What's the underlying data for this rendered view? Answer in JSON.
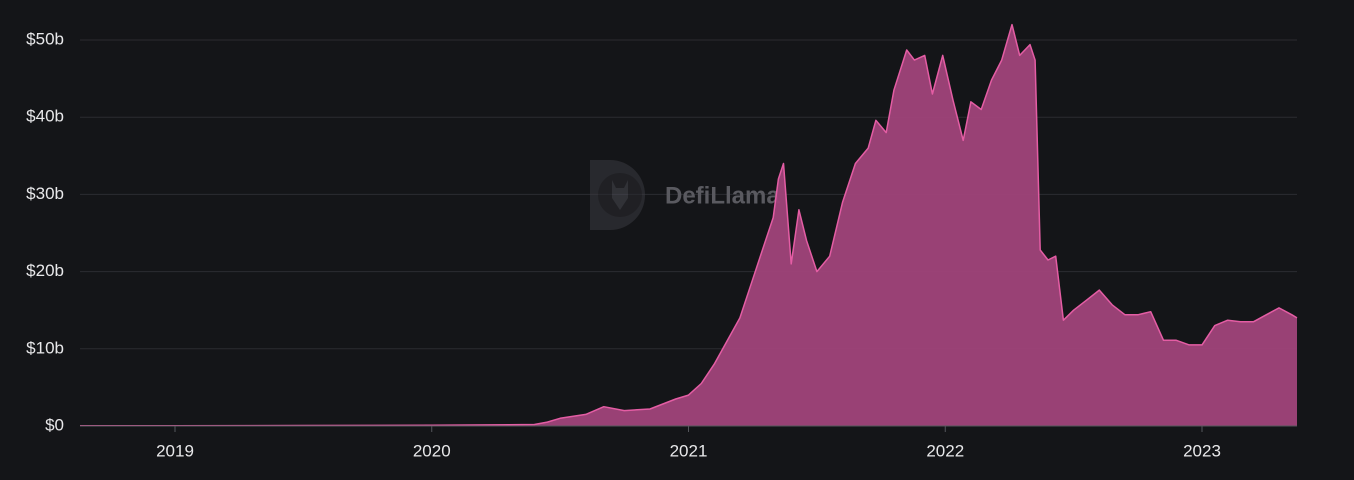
{
  "chart_data": {
    "type": "area",
    "watermark": "DefiLlama",
    "color": "#a0437a",
    "line_color": "#e45da4",
    "grid": true,
    "xlim": [
      2018.63,
      2023.37
    ],
    "xticks": [
      2019,
      2020,
      2021,
      2022,
      2023
    ],
    "ylim": [
      0,
      50
    ],
    "yticks": [
      {
        "value": 0,
        "label": "$0"
      },
      {
        "value": 10,
        "label": "$10b"
      },
      {
        "value": 20,
        "label": "$20b"
      },
      {
        "value": 30,
        "label": "$30b"
      },
      {
        "value": 40,
        "label": "$40b"
      },
      {
        "value": 50,
        "label": "$50b"
      }
    ],
    "x": [
      2018.63,
      2019.0,
      2019.5,
      2020.0,
      2020.3,
      2020.4,
      2020.45,
      2020.5,
      2020.6,
      2020.67,
      2020.75,
      2020.85,
      2020.95,
      2021.0,
      2021.05,
      2021.1,
      2021.15,
      2021.2,
      2021.25,
      2021.3,
      2021.33,
      2021.35,
      2021.37,
      2021.4,
      2021.43,
      2021.46,
      2021.5,
      2021.55,
      2021.6,
      2021.65,
      2021.7,
      2021.73,
      2021.77,
      2021.8,
      2021.85,
      2021.88,
      2021.92,
      2021.95,
      2021.99,
      2022.03,
      2022.07,
      2022.1,
      2022.14,
      2022.18,
      2022.22,
      2022.26,
      2022.29,
      2022.33,
      2022.35,
      2022.37,
      2022.4,
      2022.43,
      2022.46,
      2022.5,
      2022.55,
      2022.6,
      2022.65,
      2022.7,
      2022.75,
      2022.8,
      2022.85,
      2022.9,
      2022.95,
      2023.0,
      2023.05,
      2023.1,
      2023.15,
      2023.2,
      2023.25,
      2023.3,
      2023.35,
      2023.37
    ],
    "values": [
      0.02,
      0.03,
      0.06,
      0.1,
      0.15,
      0.2,
      0.5,
      1.0,
      1.5,
      2.5,
      2.0,
      2.2,
      3.5,
      4.0,
      5.5,
      8,
      11,
      14,
      19,
      24,
      27,
      32,
      34,
      21,
      28,
      24,
      20,
      22,
      29,
      34,
      36,
      39.6,
      38,
      43.5,
      48.7,
      47.4,
      48,
      43,
      48,
      42.2,
      37,
      42,
      41,
      44.8,
      47.4,
      52,
      48,
      49.4,
      47.4,
      22.8,
      21.5,
      22,
      13.7,
      15,
      16.3,
      17.6,
      15.7,
      14.4,
      14.4,
      14.8,
      11.1,
      11.1,
      10.5,
      10.5,
      13,
      13.7,
      13.5,
      13.5,
      14.4,
      15.3,
      14.4,
      14
    ]
  }
}
